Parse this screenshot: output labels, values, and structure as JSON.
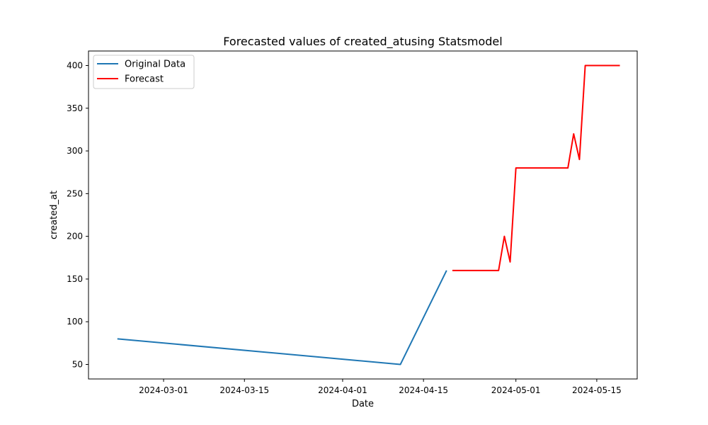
{
  "chart_data": {
    "type": "line",
    "title": "Forecasted values of created_atusing Statsmodel",
    "xlabel": "Date",
    "ylabel": "created_at",
    "x_axis_type": "date",
    "xlim": [
      "2024-02-17",
      "2024-05-22"
    ],
    "ylim": [
      33,
      417
    ],
    "x_ticks": [
      "2024-03-01",
      "2024-03-15",
      "2024-04-01",
      "2024-04-15",
      "2024-05-01",
      "2024-05-15"
    ],
    "y_ticks": [
      50,
      100,
      150,
      200,
      250,
      300,
      350,
      400
    ],
    "grid": false,
    "legend_position": "top-left",
    "series": [
      {
        "name": "Original Data",
        "color": "#1f77b4",
        "points": [
          {
            "x": "2024-02-22",
            "y": 80
          },
          {
            "x": "2024-04-11",
            "y": 50
          },
          {
            "x": "2024-04-19",
            "y": 160
          }
        ]
      },
      {
        "name": "Forecast",
        "color": "#ff0000",
        "points": [
          {
            "x": "2024-04-20",
            "y": 160
          },
          {
            "x": "2024-04-21",
            "y": 160
          },
          {
            "x": "2024-04-22",
            "y": 160
          },
          {
            "x": "2024-04-23",
            "y": 160
          },
          {
            "x": "2024-04-24",
            "y": 160
          },
          {
            "x": "2024-04-25",
            "y": 160
          },
          {
            "x": "2024-04-26",
            "y": 160
          },
          {
            "x": "2024-04-27",
            "y": 160
          },
          {
            "x": "2024-04-28",
            "y": 160
          },
          {
            "x": "2024-04-29",
            "y": 200
          },
          {
            "x": "2024-04-30",
            "y": 170
          },
          {
            "x": "2024-05-01",
            "y": 280
          },
          {
            "x": "2024-05-02",
            "y": 280
          },
          {
            "x": "2024-05-03",
            "y": 280
          },
          {
            "x": "2024-05-04",
            "y": 280
          },
          {
            "x": "2024-05-05",
            "y": 280
          },
          {
            "x": "2024-05-06",
            "y": 280
          },
          {
            "x": "2024-05-07",
            "y": 280
          },
          {
            "x": "2024-05-08",
            "y": 280
          },
          {
            "x": "2024-05-09",
            "y": 280
          },
          {
            "x": "2024-05-10",
            "y": 280
          },
          {
            "x": "2024-05-11",
            "y": 320
          },
          {
            "x": "2024-05-12",
            "y": 290
          },
          {
            "x": "2024-05-13",
            "y": 400
          },
          {
            "x": "2024-05-14",
            "y": 400
          },
          {
            "x": "2024-05-15",
            "y": 400
          },
          {
            "x": "2024-05-16",
            "y": 400
          },
          {
            "x": "2024-05-17",
            "y": 400
          },
          {
            "x": "2024-05-18",
            "y": 400
          },
          {
            "x": "2024-05-19",
            "y": 400
          }
        ]
      }
    ]
  }
}
